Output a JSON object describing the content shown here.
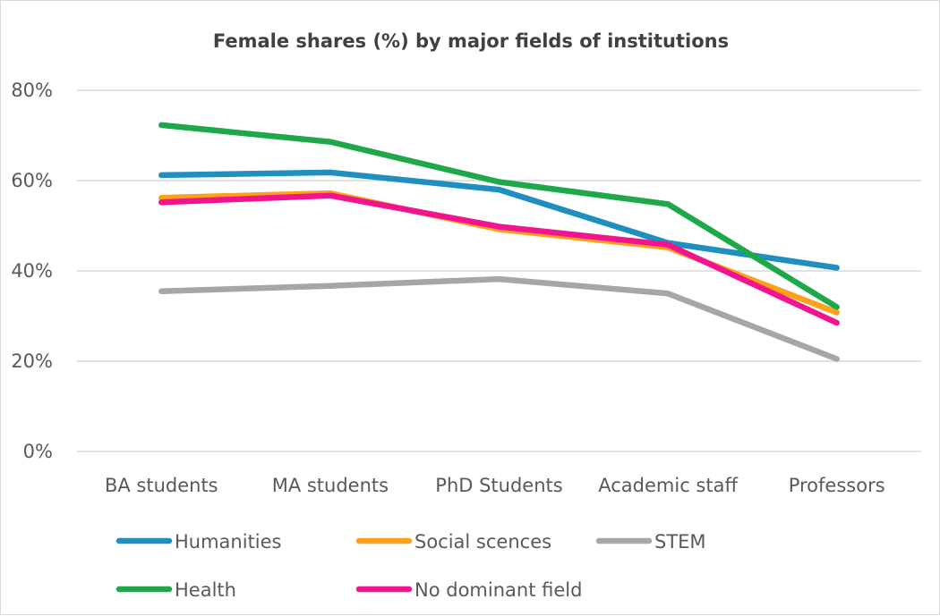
{
  "chart_data": {
    "type": "line",
    "title": "Female shares (%) by major fields of institutions",
    "xlabel": "",
    "ylabel": "",
    "categories": [
      "BA students",
      "MA students",
      "PhD Students",
      "Academic staff",
      "Professors"
    ],
    "y_ticks": [
      "0%",
      "20%",
      "40%",
      "60%",
      "80%"
    ],
    "ylim": [
      0,
      80
    ],
    "grid": true,
    "legend_position": "bottom",
    "series": [
      {
        "name": "Humanities",
        "color": "#1f8fc0",
        "values": [
          61.2,
          61.8,
          58,
          46.2,
          40.7
        ]
      },
      {
        "name": "Social scences",
        "color": "#ff9f1a",
        "values": [
          56.2,
          57.2,
          49.2,
          45.2,
          30.8
        ]
      },
      {
        "name": "STEM",
        "color": "#a6a6a6",
        "values": [
          35.5,
          36.7,
          38.2,
          35,
          20.5
        ]
      },
      {
        "name": "Health",
        "color": "#1ea84a",
        "values": [
          72.3,
          68.6,
          59.7,
          54.8,
          32
        ]
      },
      {
        "name": "No dominant field",
        "color": "#f0158f",
        "values": [
          55.2,
          56.7,
          49.8,
          45.8,
          28.5
        ]
      }
    ]
  }
}
